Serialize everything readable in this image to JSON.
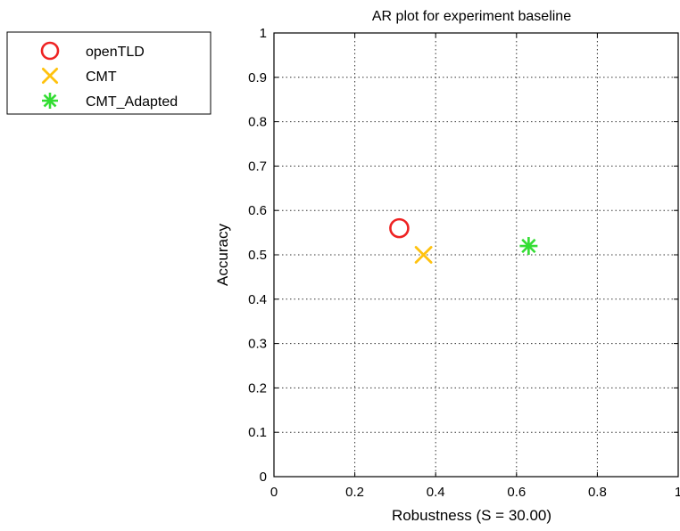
{
  "chart_data": {
    "type": "scatter",
    "title": "AR plot for experiment baseline",
    "xlabel": "Robustness (S = 30.00)",
    "ylabel": "Accuracy",
    "xlim": [
      0,
      1
    ],
    "ylim": [
      0,
      1
    ],
    "xticks": [
      "0",
      "0.2",
      "0.4",
      "0.6",
      "0.8",
      "1"
    ],
    "yticks": [
      "0",
      "0.1",
      "0.2",
      "0.3",
      "0.4",
      "0.5",
      "0.6",
      "0.7",
      "0.8",
      "0.9",
      "1"
    ],
    "grid": true,
    "legend_position": "outside-top-left",
    "series": [
      {
        "name": "openTLD",
        "marker": "circle",
        "color": "#ee2222",
        "points": [
          {
            "x": 0.31,
            "y": 0.56
          }
        ]
      },
      {
        "name": "CMT",
        "marker": "x",
        "color": "#ffc20e",
        "points": [
          {
            "x": 0.37,
            "y": 0.5
          }
        ]
      },
      {
        "name": "CMT_Adapted",
        "marker": "asterisk",
        "color": "#33dd33",
        "points": [
          {
            "x": 0.63,
            "y": 0.52
          }
        ]
      }
    ]
  }
}
